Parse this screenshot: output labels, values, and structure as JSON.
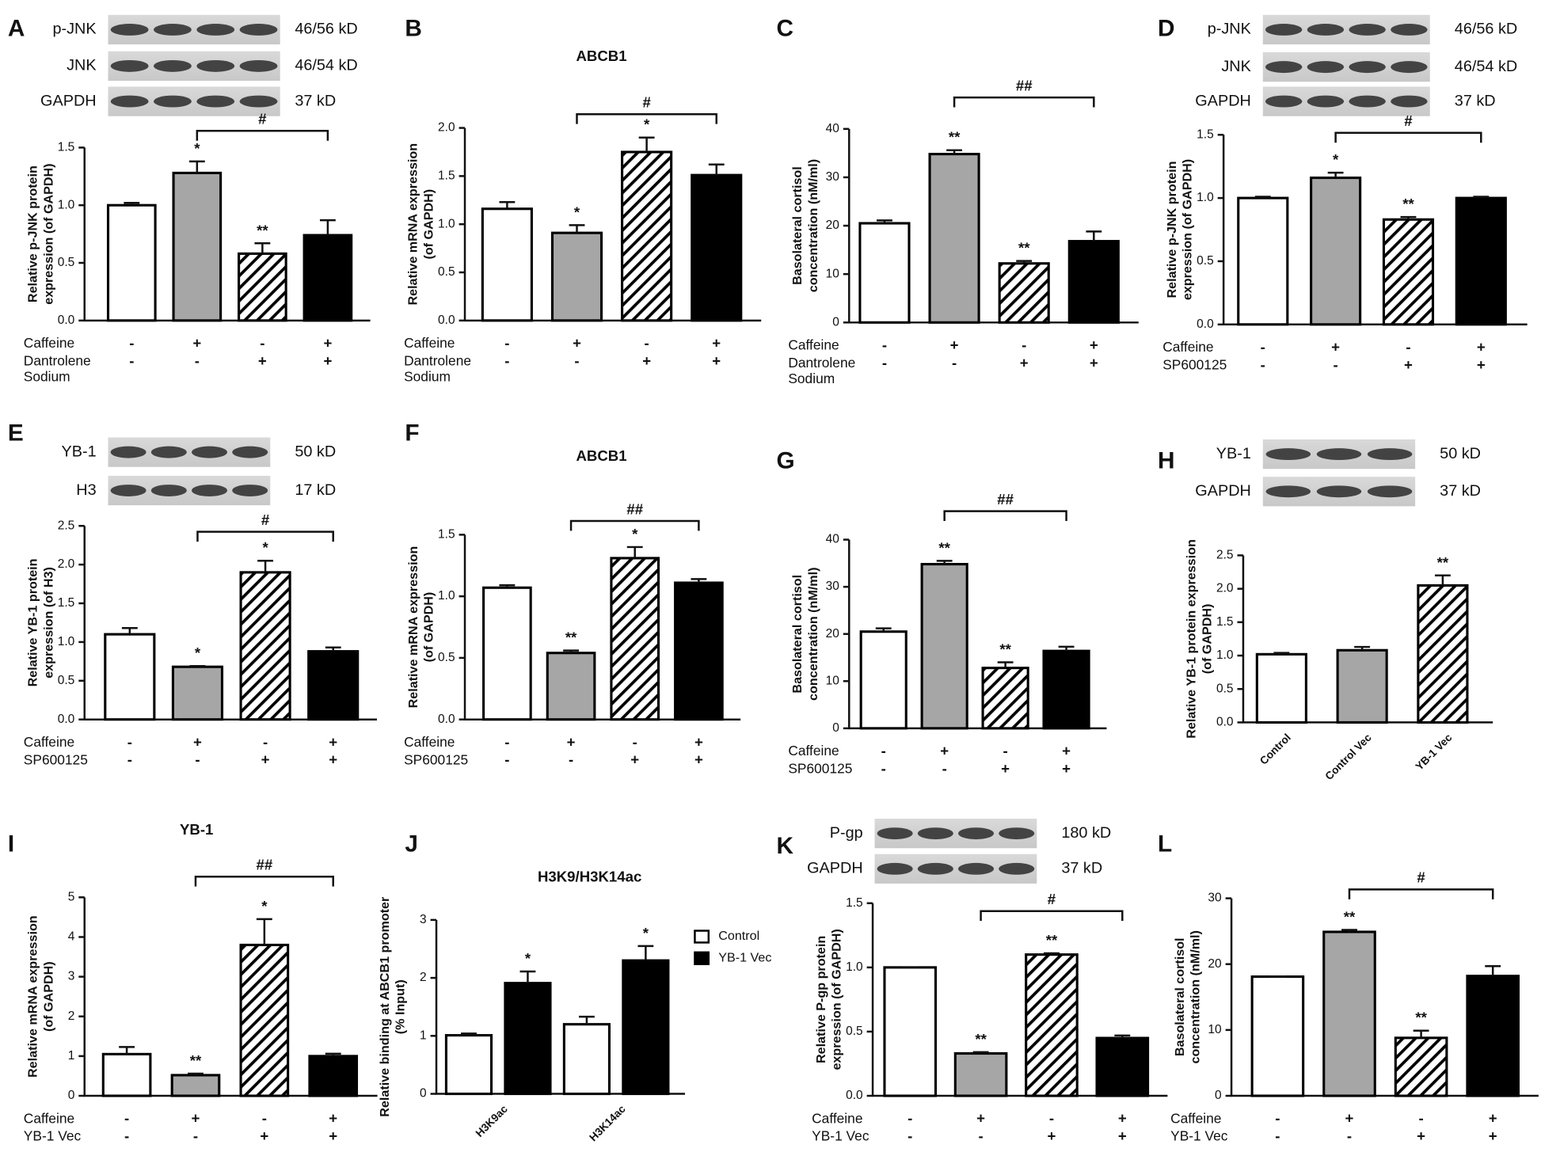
{
  "chart_data": [
    {
      "type": "bar",
      "panel": "A",
      "blots": [
        {
          "label": "p-JNK",
          "size": "46/56 kD"
        },
        {
          "label": "JNK",
          "size": "46/54 kD"
        },
        {
          "label": "GAPDH",
          "size": "37 kD"
        }
      ],
      "y_label": [
        "Relative p-JNK protein",
        "expression (of GAPDH)"
      ],
      "ylim": [
        0,
        1.5
      ],
      "yticks": [
        {
          "value": 0,
          "label": "0.0"
        },
        0.5,
        {
          "value": 1,
          "label": "1.0"
        },
        1.5
      ],
      "values": [
        1.0,
        1.28,
        0.58,
        0.74
      ],
      "errors": [
        0.02,
        0.1,
        0.09,
        0.13
      ],
      "significance": [
        null,
        "*",
        "**",
        null
      ],
      "comparison": "#",
      "colors": [
        "#ffffff",
        "#a6a6a6",
        "hatch",
        "#000000"
      ],
      "conditions": [
        {
          "name": [
            "Caffeine"
          ],
          "signs": [
            "-",
            "+",
            "-",
            "+"
          ]
        },
        {
          "name": [
            "Dantrolene",
            "Sodium"
          ],
          "signs": [
            "-",
            "-",
            "+",
            "+"
          ]
        }
      ]
    },
    {
      "type": "bar",
      "panel": "B",
      "title": "ABCB1",
      "y_label": [
        "Relative mRNA expression",
        "(of GAPDH)"
      ],
      "ylim": [
        0,
        2
      ],
      "yticks": [
        {
          "value": 0,
          "label": "0.0"
        },
        0.5,
        {
          "value": 1,
          "label": "1.0"
        },
        1.5,
        {
          "value": 2,
          "label": "2.0"
        }
      ],
      "values": [
        1.16,
        0.91,
        1.75,
        1.51
      ],
      "errors": [
        0.07,
        0.08,
        0.15,
        0.11
      ],
      "significance": [
        null,
        "*",
        "*",
        null
      ],
      "comparison": "#",
      "colors": [
        "#ffffff",
        "#a6a6a6",
        "hatch",
        "#000000"
      ],
      "conditions": [
        {
          "name": [
            "Caffeine"
          ],
          "signs": [
            "-",
            "+",
            "-",
            "+"
          ]
        },
        {
          "name": [
            "Dantrolene",
            "Sodium"
          ],
          "signs": [
            "-",
            "-",
            "+",
            "+"
          ]
        }
      ]
    },
    {
      "type": "bar",
      "panel": "C",
      "y_label": [
        "Basolateral cortisol",
        "concentration (nM/ml)"
      ],
      "ylim": [
        0,
        40
      ],
      "yticks": [
        0,
        10,
        20,
        30,
        40
      ],
      "values": [
        20.5,
        34.8,
        12.2,
        16.8
      ],
      "errors": [
        0.6,
        0.8,
        0.5,
        2.0
      ],
      "significance": [
        null,
        "**",
        "**",
        null
      ],
      "comparison": "##",
      "colors": [
        "#ffffff",
        "#a6a6a6",
        "hatch",
        "#000000"
      ],
      "conditions": [
        {
          "name": [
            "Caffeine"
          ],
          "signs": [
            "-",
            "+",
            "-",
            "+"
          ]
        },
        {
          "name": [
            "Dantrolene",
            "Sodium"
          ],
          "signs": [
            "-",
            "-",
            "+",
            "+"
          ]
        }
      ]
    },
    {
      "type": "bar",
      "panel": "D",
      "blots": [
        {
          "label": "p-JNK",
          "size": "46/56 kD"
        },
        {
          "label": "JNK",
          "size": "46/54 kD"
        },
        {
          "label": "GAPDH",
          "size": "37 kD"
        }
      ],
      "y_label": [
        "Relative p-JNK protein",
        "expression (of GAPDH)"
      ],
      "ylim": [
        0,
        1.5
      ],
      "yticks": [
        {
          "value": 0,
          "label": "0.0"
        },
        0.5,
        {
          "value": 1,
          "label": "1.0"
        },
        1.5
      ],
      "values": [
        1.0,
        1.16,
        0.83,
        1.0
      ],
      "errors": [
        0.01,
        0.04,
        0.02,
        0.01
      ],
      "significance": [
        null,
        "*",
        "**",
        null
      ],
      "comparison": "#",
      "colors": [
        "#ffffff",
        "#a6a6a6",
        "hatch",
        "#000000"
      ],
      "conditions": [
        {
          "name": [
            "Caffeine"
          ],
          "signs": [
            "-",
            "+",
            "-",
            "+"
          ]
        },
        {
          "name": [
            "SP600125"
          ],
          "signs": [
            "-",
            "-",
            "+",
            "+"
          ]
        }
      ]
    },
    {
      "type": "bar",
      "panel": "E",
      "blots": [
        {
          "label": "YB-1",
          "size": "50 kD"
        },
        {
          "label": "H3",
          "size": "17 kD"
        }
      ],
      "y_label": [
        "Relative YB-1 protein",
        "expression (of H3)"
      ],
      "ylim": [
        0,
        2.5
      ],
      "yticks": [
        {
          "value": 0,
          "label": "0.0"
        },
        0.5,
        {
          "value": 1,
          "label": "1.0"
        },
        1.5,
        {
          "value": 2,
          "label": "2.0"
        },
        2.5
      ],
      "values": [
        1.1,
        0.68,
        1.9,
        0.88
      ],
      "errors": [
        0.08,
        0.01,
        0.15,
        0.05
      ],
      "significance": [
        null,
        "*",
        "*",
        null
      ],
      "comparison": "#",
      "colors": [
        "#ffffff",
        "#a6a6a6",
        "hatch",
        "#000000"
      ],
      "conditions": [
        {
          "name": [
            "Caffeine"
          ],
          "signs": [
            "-",
            "+",
            "-",
            "+"
          ]
        },
        {
          "name": [
            "SP600125"
          ],
          "signs": [
            "-",
            "-",
            "+",
            "+"
          ]
        }
      ]
    },
    {
      "type": "bar",
      "panel": "F",
      "title": "ABCB1",
      "y_label": [
        "Relative mRNA expression",
        "(of GAPDH)"
      ],
      "ylim": [
        0,
        1.5
      ],
      "yticks": [
        {
          "value": 0,
          "label": "0.0"
        },
        0.5,
        {
          "value": 1,
          "label": "1.0"
        },
        1.5
      ],
      "values": [
        1.07,
        0.54,
        1.31,
        1.11
      ],
      "errors": [
        0.02,
        0.02,
        0.09,
        0.03
      ],
      "significance": [
        null,
        "**",
        "*",
        null
      ],
      "comparison": "##",
      "colors": [
        "#ffffff",
        "#a6a6a6",
        "hatch",
        "#000000"
      ],
      "conditions": [
        {
          "name": [
            "Caffeine"
          ],
          "signs": [
            "-",
            "+",
            "-",
            "+"
          ]
        },
        {
          "name": [
            "SP600125"
          ],
          "signs": [
            "-",
            "-",
            "+",
            "+"
          ]
        }
      ]
    },
    {
      "type": "bar",
      "panel": "G",
      "y_label": [
        "Basolateral cortisol",
        "concentration (nM/ml)"
      ],
      "ylim": [
        0,
        40
      ],
      "yticks": [
        0,
        10,
        20,
        30,
        40
      ],
      "values": [
        20.5,
        34.8,
        12.8,
        16.4
      ],
      "errors": [
        0.7,
        0.7,
        1.2,
        0.9
      ],
      "significance": [
        null,
        "**",
        "**",
        null
      ],
      "comparison": "##",
      "colors": [
        "#ffffff",
        "#a6a6a6",
        "hatch",
        "#000000"
      ],
      "conditions": [
        {
          "name": [
            "Caffeine"
          ],
          "signs": [
            "-",
            "+",
            "-",
            "+"
          ]
        },
        {
          "name": [
            "SP600125"
          ],
          "signs": [
            "-",
            "-",
            "+",
            "+"
          ]
        }
      ]
    },
    {
      "type": "bar",
      "panel": "H",
      "blots": [
        {
          "label": "YB-1",
          "size": "50 kD"
        },
        {
          "label": "GAPDH",
          "size": "37 kD"
        }
      ],
      "y_label": [
        "Relative YB-1 protein expression",
        "(of GAPDH)"
      ],
      "ylim": [
        0,
        2.5
      ],
      "yticks": [
        {
          "value": 0,
          "label": "0.0"
        },
        0.5,
        {
          "value": 1,
          "label": "1.0"
        },
        1.5,
        {
          "value": 2,
          "label": "2.0"
        },
        2.5
      ],
      "categories": [
        "Control",
        "Control Vec",
        "YB-1 Vec"
      ],
      "values": [
        1.02,
        1.08,
        2.05
      ],
      "errors": [
        0.02,
        0.05,
        0.15
      ],
      "significance": [
        null,
        null,
        "**"
      ],
      "colors": [
        "#ffffff",
        "#a6a6a6",
        "hatch"
      ]
    },
    {
      "type": "bar",
      "panel": "I",
      "title": "YB-1",
      "y_label": [
        "Relative mRNA expression",
        "(of GAPDH)"
      ],
      "ylim": [
        0,
        5
      ],
      "yticks": [
        0,
        1,
        2,
        3,
        4,
        5
      ],
      "values": [
        1.05,
        0.52,
        3.8,
        1.0
      ],
      "errors": [
        0.18,
        0.04,
        0.65,
        0.06
      ],
      "significance": [
        null,
        "**",
        "*",
        null
      ],
      "comparison": "##",
      "colors": [
        "#ffffff",
        "#a6a6a6",
        "hatch",
        "#000000"
      ],
      "conditions": [
        {
          "name": [
            "Caffeine"
          ],
          "signs": [
            "-",
            "+",
            "-",
            "+"
          ]
        },
        {
          "name": [
            "YB-1 Vec"
          ],
          "signs": [
            "-",
            "-",
            "+",
            "+"
          ]
        }
      ]
    },
    {
      "type": "grouped_bar",
      "panel": "J",
      "title": "H3K9/H3K14ac",
      "y_label": [
        "Relative binding at ABCB1 promoter",
        "(% Input)"
      ],
      "ylim": [
        0,
        3
      ],
      "yticks": [
        0,
        1,
        2,
        3
      ],
      "categories": [
        "H3K9ac",
        "H3K14ac"
      ],
      "series": [
        {
          "name": "Control",
          "color": "#ffffff",
          "values": [
            1.01,
            1.2
          ],
          "errors": [
            0.03,
            0.13
          ],
          "significance": [
            null,
            null
          ]
        },
        {
          "name": "YB-1 Vec",
          "color": "#000000",
          "values": [
            1.91,
            2.3
          ],
          "errors": [
            0.2,
            0.25
          ],
          "significance": [
            "*",
            "*"
          ]
        }
      ]
    },
    {
      "type": "bar",
      "panel": "K",
      "blots": [
        {
          "label": "P-gp",
          "size": "180 kD"
        },
        {
          "label": "GAPDH",
          "size": "37 kD"
        }
      ],
      "y_label": [
        "Relative P-gp protein",
        "expression (of GAPDH)"
      ],
      "ylim": [
        0,
        1.5
      ],
      "yticks": [
        {
          "value": 0,
          "label": "0.0"
        },
        0.5,
        {
          "value": 1,
          "label": "1.0"
        },
        1.5
      ],
      "values": [
        1.0,
        0.33,
        1.1,
        0.45
      ],
      "errors": [
        0.0,
        0.01,
        0.01,
        0.02
      ],
      "significance": [
        null,
        "**",
        "**",
        null
      ],
      "comparison": "#",
      "colors": [
        "#ffffff",
        "#a6a6a6",
        "hatch",
        "#000000"
      ],
      "conditions": [
        {
          "name": [
            "Caffeine"
          ],
          "signs": [
            "-",
            "+",
            "-",
            "+"
          ]
        },
        {
          "name": [
            "YB-1 Vec"
          ],
          "signs": [
            "-",
            "-",
            "+",
            "+"
          ]
        }
      ]
    },
    {
      "type": "bar",
      "panel": "L",
      "y_label": [
        "Basolateral cortisol",
        "concentration (nM/ml)"
      ],
      "ylim": [
        0,
        30
      ],
      "yticks": [
        0,
        10,
        20,
        30
      ],
      "values": [
        18.1,
        24.9,
        8.8,
        18.2
      ],
      "errors": [
        0.0,
        0.3,
        1.1,
        1.5
      ],
      "significance": [
        null,
        "**",
        "**",
        null
      ],
      "comparison": "#",
      "colors": [
        "#ffffff",
        "#a6a6a6",
        "hatch",
        "#000000"
      ],
      "conditions": [
        {
          "name": [
            "Caffeine"
          ],
          "signs": [
            "-",
            "+",
            "-",
            "+"
          ]
        },
        {
          "name": [
            "YB-1 Vec"
          ],
          "signs": [
            "-",
            "-",
            "+",
            "+"
          ]
        }
      ]
    }
  ]
}
